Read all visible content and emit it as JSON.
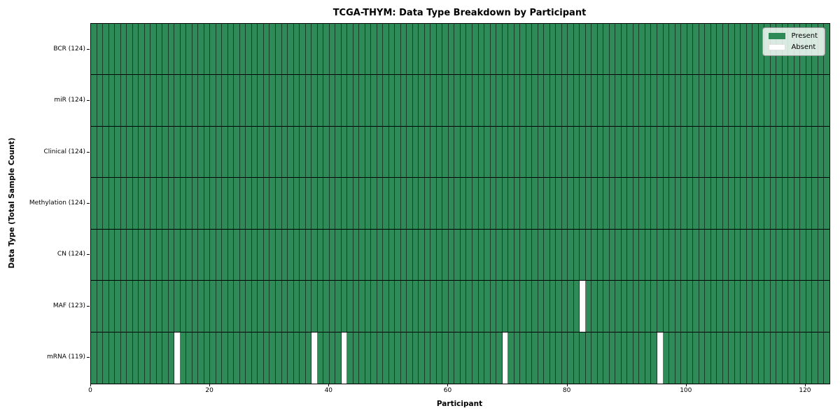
{
  "chart_data": {
    "type": "heatmap",
    "title": "TCGA-THYM: Data Type Breakdown by Participant",
    "xlabel": "Participant",
    "ylabel": "Data Type (Total Sample Count)",
    "n_participants": 124,
    "x_ticks": [
      0,
      20,
      40,
      60,
      80,
      100,
      120
    ],
    "xlim": [
      0,
      124
    ],
    "grid": "cell-edges",
    "rows": [
      {
        "label": "BCR (124)",
        "total_samples": 124,
        "absent_participants": []
      },
      {
        "label": "miR (124)",
        "total_samples": 124,
        "absent_participants": []
      },
      {
        "label": "Clinical (124)",
        "total_samples": 124,
        "absent_participants": []
      },
      {
        "label": "Methylation (124)",
        "total_samples": 124,
        "absent_participants": []
      },
      {
        "label": "CN (124)",
        "total_samples": 124,
        "absent_participants": []
      },
      {
        "label": "MAF (123)",
        "total_samples": 123,
        "absent_participants": [
          82
        ]
      },
      {
        "label": "mRNA (119)",
        "total_samples": 119,
        "absent_participants": [
          14,
          37,
          42,
          69,
          95
        ]
      }
    ],
    "legend": {
      "position": "upper right",
      "items": [
        {
          "label": "Present",
          "color": "#2e8b57"
        },
        {
          "label": "Absent",
          "color": "#ffffff"
        }
      ]
    },
    "colors": {
      "present": "#2e8b57",
      "absent": "#ffffff",
      "cell_edge": "rgba(0,0,0,0.55)",
      "row_divider": "#000000"
    }
  }
}
